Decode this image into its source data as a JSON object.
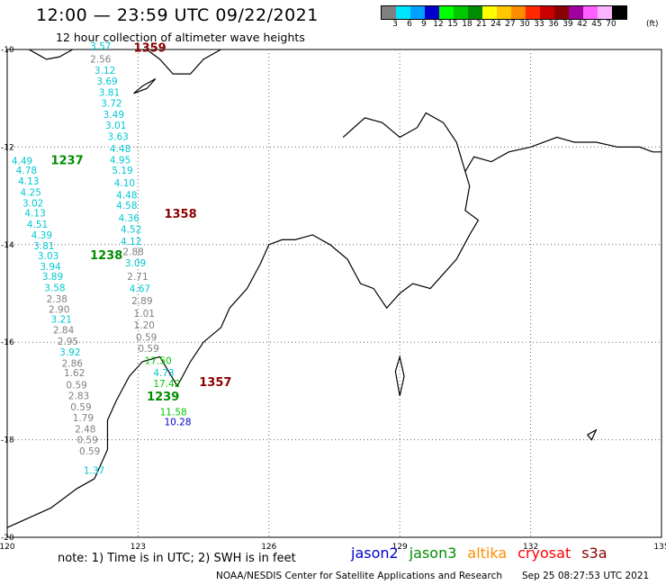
{
  "header": {
    "title": "12:00 — 23:59 UTC 09/22/2021",
    "subtitle": "12 hour collection of altimeter wave heights"
  },
  "legend": {
    "colors": [
      "#808080",
      "#00e5ff",
      "#00a0ff",
      "#0000cd",
      "#00ff00",
      "#00c800",
      "#008c00",
      "#ffff00",
      "#ffc800",
      "#ff8c00",
      "#ff2800",
      "#c80000",
      "#8b0000",
      "#a000a0",
      "#ff60ff",
      "#ffb4ff",
      "#000000"
    ],
    "labels": [
      "3",
      "6",
      "9",
      "12",
      "15",
      "18",
      "21",
      "24",
      "27",
      "30",
      "33",
      "36",
      "39",
      "42",
      "45",
      "70"
    ],
    "unit": "(ft)"
  },
  "axes": {
    "x_ticks": [
      "120",
      "123",
      "126",
      "129",
      "132",
      "135"
    ],
    "y_ticks": [
      "-10",
      "-12",
      "-14",
      "-16",
      "-18",
      "-20"
    ],
    "x_range": [
      120,
      135
    ],
    "y_range": [
      -20,
      -10
    ]
  },
  "pass_labels": [
    {
      "text": "1359",
      "lon": 122.9,
      "lat": -10.05,
      "color": "#8b0000"
    },
    {
      "text": "1237",
      "lon": 121.0,
      "lat": -12.35,
      "color": "#008c00"
    },
    {
      "text": "1358",
      "lon": 123.6,
      "lat": -13.45,
      "color": "#8b0000"
    },
    {
      "text": "1238",
      "lon": 121.9,
      "lat": -14.3,
      "color": "#008c00"
    },
    {
      "text": "1357",
      "lon": 124.4,
      "lat": -16.9,
      "color": "#8b0000"
    },
    {
      "text": "1239",
      "lon": 123.2,
      "lat": -17.2,
      "color": "#008c00"
    }
  ],
  "wave_labels": [
    {
      "text": "3.57",
      "lon": 121.9,
      "lat": -10.0,
      "color": "#00c8d2"
    },
    {
      "text": "2.56",
      "lon": 121.9,
      "lat": -10.27,
      "color": "#808080"
    },
    {
      "text": "3.12",
      "lon": 122.0,
      "lat": -10.5,
      "color": "#00c8d2"
    },
    {
      "text": "3.69",
      "lon": 122.05,
      "lat": -10.72,
      "color": "#00c8d2"
    },
    {
      "text": "3.81",
      "lon": 122.1,
      "lat": -10.95,
      "color": "#00c8d2"
    },
    {
      "text": "3.72",
      "lon": 122.15,
      "lat": -11.17,
      "color": "#00c8d2"
    },
    {
      "text": "3.49",
      "lon": 122.2,
      "lat": -11.4,
      "color": "#00c8d2"
    },
    {
      "text": "3.01",
      "lon": 122.25,
      "lat": -11.62,
      "color": "#00c8d2"
    },
    {
      "text": "3.63",
      "lon": 122.3,
      "lat": -11.85,
      "color": "#00c8d2"
    },
    {
      "text": "4.48",
      "lon": 122.35,
      "lat": -12.1,
      "color": "#00c8d2"
    },
    {
      "text": "4.95",
      "lon": 122.35,
      "lat": -12.33,
      "color": "#00c8d2"
    },
    {
      "text": "5.19",
      "lon": 122.4,
      "lat": -12.55,
      "color": "#00c8d2"
    },
    {
      "text": "4.10",
      "lon": 122.45,
      "lat": -12.8,
      "color": "#00c8d2"
    },
    {
      "text": "4.48",
      "lon": 122.5,
      "lat": -13.05,
      "color": "#00c8d2"
    },
    {
      "text": "4.58",
      "lon": 122.5,
      "lat": -13.27,
      "color": "#00c8d2"
    },
    {
      "text": "4.36",
      "lon": 122.55,
      "lat": -13.52,
      "color": "#00c8d2"
    },
    {
      "text": "4.52",
      "lon": 122.6,
      "lat": -13.75,
      "color": "#00c8d2"
    },
    {
      "text": "4.12",
      "lon": 122.6,
      "lat": -14.0,
      "color": "#00c8d2"
    },
    {
      "text": "2.88",
      "lon": 122.65,
      "lat": -14.22,
      "color": "#808080"
    },
    {
      "text": "3.09",
      "lon": 122.7,
      "lat": -14.45,
      "color": "#00c8d2"
    },
    {
      "text": "2.71",
      "lon": 122.75,
      "lat": -14.72,
      "color": "#808080"
    },
    {
      "text": "4.67",
      "lon": 122.8,
      "lat": -14.97,
      "color": "#00c8d2"
    },
    {
      "text": "2.89",
      "lon": 122.85,
      "lat": -15.22,
      "color": "#808080"
    },
    {
      "text": "1.01",
      "lon": 122.9,
      "lat": -15.48,
      "color": "#808080"
    },
    {
      "text": "1.20",
      "lon": 122.9,
      "lat": -15.72,
      "color": "#808080"
    },
    {
      "text": "0.59",
      "lon": 122.95,
      "lat": -15.97,
      "color": "#808080"
    },
    {
      "text": "0.59",
      "lon": 123.0,
      "lat": -16.2,
      "color": "#808080"
    },
    {
      "text": "17.50",
      "lon": 123.15,
      "lat": -16.45,
      "color": "#00c800"
    },
    {
      "text": "4.73",
      "lon": 123.35,
      "lat": -16.7,
      "color": "#00c8d2"
    },
    {
      "text": "17.42",
      "lon": 123.35,
      "lat": -16.92,
      "color": "#00c800"
    },
    {
      "text": "11.58",
      "lon": 123.5,
      "lat": -17.5,
      "color": "#00c800"
    },
    {
      "text": "10.28",
      "lon": 123.6,
      "lat": -17.7,
      "color": "#0000cd"
    },
    {
      "text": "4.49",
      "lon": 120.1,
      "lat": -12.35,
      "color": "#00c8d2"
    },
    {
      "text": "4.78",
      "lon": 120.2,
      "lat": -12.55,
      "color": "#00c8d2"
    },
    {
      "text": "4.13",
      "lon": 120.25,
      "lat": -12.77,
      "color": "#00c8d2"
    },
    {
      "text": "4.25",
      "lon": 120.3,
      "lat": -13.0,
      "color": "#00c8d2"
    },
    {
      "text": "3.02",
      "lon": 120.35,
      "lat": -13.22,
      "color": "#00c8d2"
    },
    {
      "text": "4.13",
      "lon": 120.4,
      "lat": -13.42,
      "color": "#00c8d2"
    },
    {
      "text": "4.51",
      "lon": 120.45,
      "lat": -13.65,
      "color": "#00c8d2"
    },
    {
      "text": "4.39",
      "lon": 120.55,
      "lat": -13.87,
      "color": "#00c8d2"
    },
    {
      "text": "3.81",
      "lon": 120.6,
      "lat": -14.1,
      "color": "#00c8d2"
    },
    {
      "text": "3.03",
      "lon": 120.7,
      "lat": -14.3,
      "color": "#00c8d2"
    },
    {
      "text": "3.94",
      "lon": 120.75,
      "lat": -14.52,
      "color": "#00c8d2"
    },
    {
      "text": "3.89",
      "lon": 120.8,
      "lat": -14.72,
      "color": "#00c8d2"
    },
    {
      "text": "3.58",
      "lon": 120.85,
      "lat": -14.95,
      "color": "#00c8d2"
    },
    {
      "text": "2.38",
      "lon": 120.9,
      "lat": -15.18,
      "color": "#808080"
    },
    {
      "text": "2.90",
      "lon": 120.95,
      "lat": -15.4,
      "color": "#808080"
    },
    {
      "text": "3.21",
      "lon": 121.0,
      "lat": -15.6,
      "color": "#00c8d2"
    },
    {
      "text": "2.84",
      "lon": 121.05,
      "lat": -15.82,
      "color": "#808080"
    },
    {
      "text": "2.95",
      "lon": 121.15,
      "lat": -16.05,
      "color": "#808080"
    },
    {
      "text": "3.92",
      "lon": 121.2,
      "lat": -16.27,
      "color": "#00c8d2"
    },
    {
      "text": "2.86",
      "lon": 121.25,
      "lat": -16.5,
      "color": "#808080"
    },
    {
      "text": "1.62",
      "lon": 121.3,
      "lat": -16.7,
      "color": "#808080"
    },
    {
      "text": "0.59",
      "lon": 121.35,
      "lat": -16.95,
      "color": "#808080"
    },
    {
      "text": "2.83",
      "lon": 121.4,
      "lat": -17.17,
      "color": "#808080"
    },
    {
      "text": "0.59",
      "lon": 121.45,
      "lat": -17.4,
      "color": "#808080"
    },
    {
      "text": "1.79",
      "lon": 121.5,
      "lat": -17.62,
      "color": "#808080"
    },
    {
      "text": "2.48",
      "lon": 121.55,
      "lat": -17.85,
      "color": "#808080"
    },
    {
      "text": "0.59",
      "lon": 121.6,
      "lat": -18.07,
      "color": "#808080"
    },
    {
      "text": "0.59",
      "lon": 121.65,
      "lat": -18.3,
      "color": "#808080"
    },
    {
      "text": "1.37",
      "lon": 121.75,
      "lat": -18.7,
      "color": "#00c8d2"
    }
  ],
  "footer": {
    "note": "note: 1) Time is in UTC; 2) SWH is in feet",
    "missions": [
      {
        "name": "jason2",
        "color": "#0000cd"
      },
      {
        "name": "jason3",
        "color": "#008c00"
      },
      {
        "name": "altika",
        "color": "#ff8c00"
      },
      {
        "name": "cryosat",
        "color": "#ff0000"
      },
      {
        "name": "s3a",
        "color": "#8b0000"
      }
    ],
    "credit": "NOAA/NESDIS Center for Satellite Applications and Research",
    "timestamp": "Sep 25 08:27:53 UTC 2021"
  }
}
